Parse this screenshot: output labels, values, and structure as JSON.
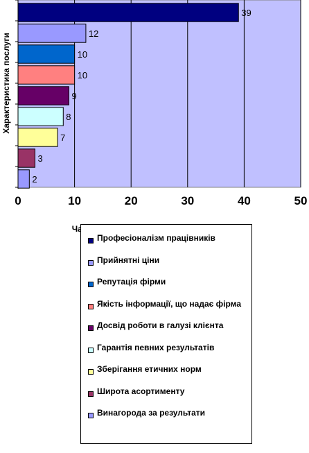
{
  "chart_data": {
    "type": "bar",
    "orientation": "horizontal",
    "categories": [
      "Професіоналізм працівників",
      "Прийнятні ціни",
      "Репутація фірми",
      "Якість інформації, що надає фірма",
      "Досвід роботи в галузі клієнта",
      "Гарантія певних результатів",
      "Зберігання етичних норм",
      "Широта асортименту",
      "Винагорода за результати"
    ],
    "values": [
      39,
      12,
      10,
      10,
      9,
      8,
      7,
      3,
      2
    ],
    "colors": [
      "#000080",
      "#9999ff",
      "#0066cc",
      "#ff8080",
      "#660066",
      "#ccffff",
      "#ffff99",
      "#993366",
      "#9999ff"
    ],
    "plot_background": "#c0c0ff",
    "xlabel": "Частка послуг в їх загальному обсязі, %",
    "ylabel": "Характеристика послуги",
    "xlim": [
      0,
      50
    ],
    "xticks": [
      "0",
      "10",
      "20",
      "30",
      "40",
      "50"
    ],
    "grid": "vertical",
    "legend_position": "bottom"
  }
}
